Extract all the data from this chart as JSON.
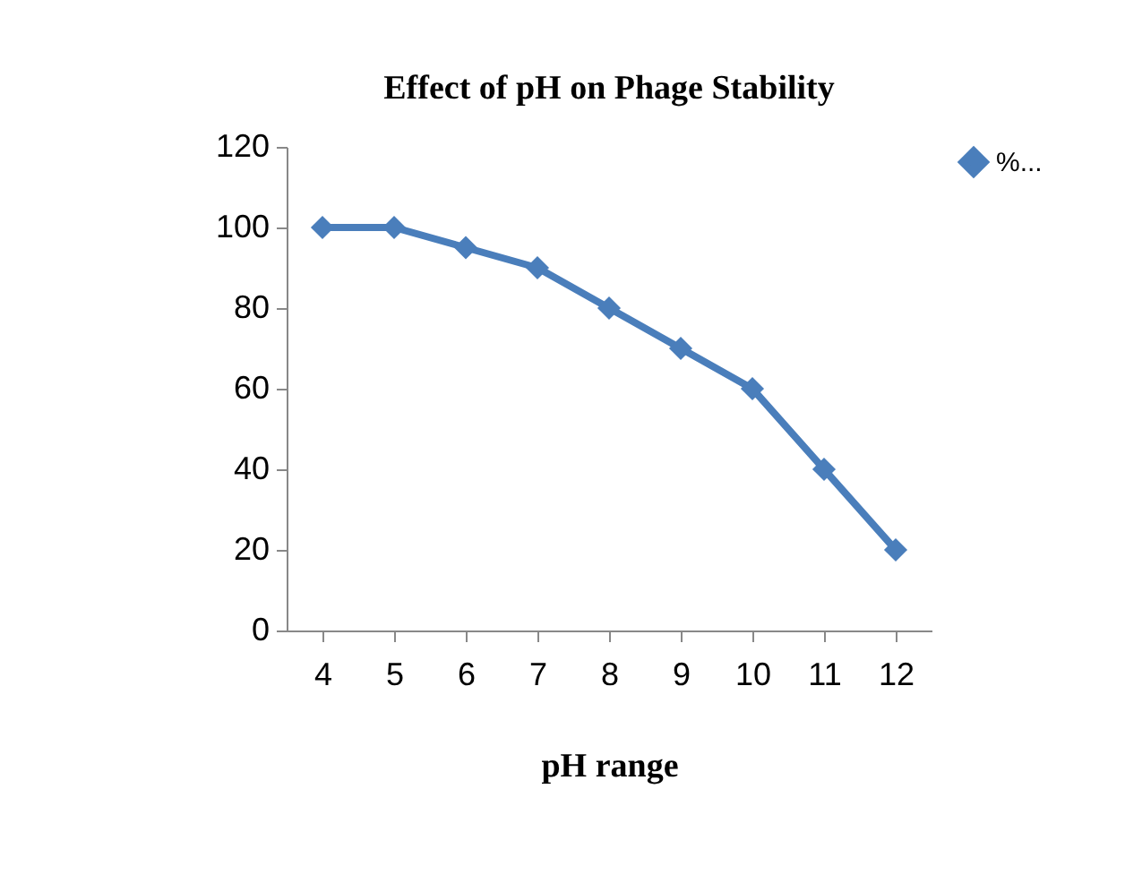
{
  "chart_data": {
    "type": "line",
    "title": "Effect of pH on Phage Stability",
    "xlabel": "pH  range",
    "categories": [
      "4",
      "5",
      "6",
      "7",
      "8",
      "9",
      "10",
      "11",
      "12"
    ],
    "series": [
      {
        "name": "%...",
        "color": "#4a7ebb",
        "values": [
          100,
          100,
          95,
          90,
          80,
          70,
          60,
          40,
          20
        ]
      }
    ],
    "ylim": [
      0,
      120
    ],
    "yticks": [
      0,
      20,
      40,
      60,
      80,
      100,
      120
    ],
    "grid": false,
    "legend": "right",
    "marker": "diamond",
    "line_style": "solid"
  }
}
